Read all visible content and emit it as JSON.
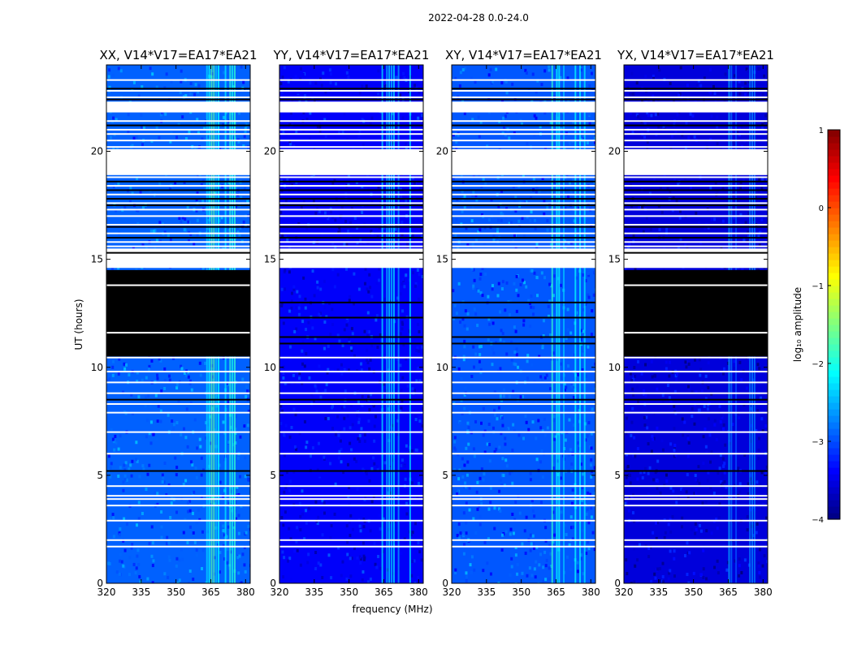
{
  "chart_data": {
    "type": "heatmap",
    "suptitle": "2022-04-28 0.0-24.0",
    "xlabel": "frequency (MHz)",
    "ylabel": "UT (hours)",
    "xlim": [
      320,
      382
    ],
    "ylim": [
      0,
      24
    ],
    "xticks": [
      320,
      335,
      350,
      365,
      380
    ],
    "yticks": [
      0,
      5,
      10,
      15,
      20
    ],
    "panels": [
      {
        "title": "XX, V14*V17=EA17*EA21",
        "base_level": -2.9,
        "black_block": [
          10.5,
          14.5
        ]
      },
      {
        "title": "YY, V14*V17=EA17*EA21",
        "base_level": -3.4,
        "black_block": null
      },
      {
        "title": "XY, V14*V17=EA17*EA21",
        "base_level": -2.95,
        "black_block": null
      },
      {
        "title": "YX, V14*V17=EA17*EA21",
        "base_level": -3.55,
        "black_block": [
          10.5,
          14.5
        ]
      }
    ],
    "rfi_band_MHz": [
      363,
      378
    ],
    "flagged_white_hours": [
      1.7,
      2.0,
      2.9,
      3.6,
      3.9,
      4.05,
      4.5,
      6.0,
      7.0,
      7.9,
      8.3,
      8.8,
      9.3,
      9.8,
      10.45,
      15.0,
      15.2,
      15.4,
      15.6,
      15.8,
      16.0,
      16.2,
      16.6,
      17.0,
      17.3,
      17.6,
      18.0,
      18.4,
      18.8,
      19.0,
      19.3,
      19.6,
      19.9,
      20.2,
      20.5,
      20.8,
      21.0,
      21.4,
      21.9,
      22.1,
      22.5,
      22.8,
      23.3
    ],
    "flagged_white_spans_hours": [
      [
        14.6,
        15.5
      ],
      [
        18.9,
        20.1
      ],
      [
        21.8,
        22.3
      ],
      [
        19.3,
        19.6
      ]
    ],
    "flagged_black_hours": [
      5.2,
      8.5,
      11.4,
      11.1,
      12.3,
      13.0,
      15.3,
      16.0,
      16.5,
      17.5,
      17.8,
      18.2,
      18.6,
      21.2,
      22.4,
      22.9
    ],
    "colorbar": {
      "label": "log₁₀ amplitude",
      "range": [
        -4,
        1
      ],
      "ticks": [
        "1",
        "0",
        "−1",
        "−2",
        "−3",
        "−4"
      ],
      "colormap": "jet"
    }
  }
}
